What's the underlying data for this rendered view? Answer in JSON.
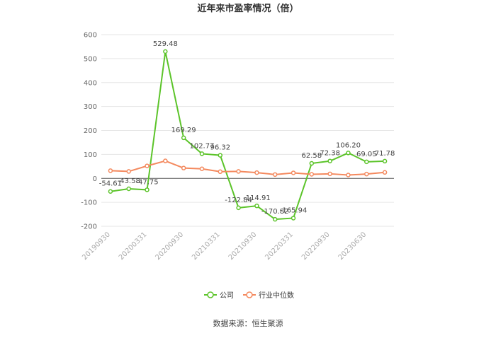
{
  "chart_data": {
    "type": "line",
    "title": "近年来市盈率情况（倍）",
    "categories": [
      "20190930",
      null,
      "20200331",
      null,
      "20200930",
      null,
      "20210331",
      null,
      "20210930",
      null,
      "20220331",
      null,
      "20220930",
      null,
      "20230630",
      null
    ],
    "series": [
      {
        "name": "公司",
        "color": "#5cc42a",
        "values": [
          -54.61,
          -43.58,
          -47.75,
          529.48,
          169.29,
          102.77,
          96.32,
          -122.84,
          -114.91,
          -170.82,
          -165.94,
          62.58,
          72.38,
          106.2,
          69.05,
          71.78
        ],
        "value_labels": [
          "-54.61",
          "-43.58",
          "-47.75",
          "529.48",
          "169.29",
          "102.77",
          "96.32",
          "-122.84",
          "-114.91",
          "-170.82",
          "-165.94",
          "62.58",
          "72.38",
          "106.20",
          "69.05",
          "71.78"
        ]
      },
      {
        "name": "行业中位数",
        "color": "#f4895e",
        "values": [
          32,
          29,
          52,
          73,
          43,
          40,
          28,
          29,
          24,
          16,
          23,
          17,
          19,
          14,
          18,
          25
        ]
      }
    ],
    "ylim": [
      -200,
      600
    ],
    "yticks": [
      -200,
      -100,
      0,
      100,
      200,
      300,
      400,
      500,
      600
    ],
    "grid": true,
    "source": "数据来源：恒生聚源"
  }
}
